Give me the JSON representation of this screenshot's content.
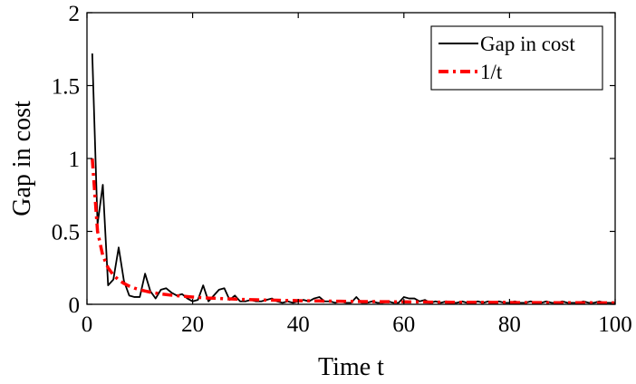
{
  "chart_data": {
    "type": "line",
    "xlabel": "Time t",
    "ylabel": "Gap in cost",
    "xlim": [
      0,
      100
    ],
    "ylim": [
      0,
      2
    ],
    "xticks": [
      0,
      20,
      40,
      60,
      80,
      100
    ],
    "yticks": [
      0,
      0.5,
      1,
      1.5,
      2
    ],
    "xtick_labels": [
      "0",
      "20",
      "40",
      "60",
      "80",
      "100"
    ],
    "ytick_labels": [
      "0",
      "0.5",
      "1",
      "1.5",
      "2"
    ],
    "grid": false,
    "legend_position": "top-right",
    "series": [
      {
        "name": "Gap in cost",
        "color": "#000000",
        "style": "solid",
        "x": [
          1,
          2,
          3,
          4,
          5,
          6,
          7,
          8,
          9,
          10,
          11,
          12,
          13,
          14,
          15,
          16,
          17,
          18,
          19,
          20,
          21,
          22,
          23,
          24,
          25,
          26,
          27,
          28,
          29,
          30,
          31,
          32,
          33,
          34,
          35,
          36,
          37,
          38,
          39,
          40,
          41,
          42,
          43,
          44,
          45,
          46,
          47,
          48,
          49,
          50,
          51,
          52,
          53,
          54,
          55,
          56,
          57,
          58,
          59,
          60,
          61,
          62,
          63,
          64,
          65,
          66,
          67,
          68,
          69,
          70,
          71,
          72,
          73,
          74,
          75,
          76,
          77,
          78,
          79,
          80,
          81,
          82,
          83,
          84,
          85,
          86,
          87,
          88,
          89,
          90,
          91,
          92,
          93,
          94,
          95,
          96,
          97,
          98,
          99,
          100
        ],
        "y": [
          1.72,
          0.55,
          0.82,
          0.13,
          0.17,
          0.39,
          0.16,
          0.06,
          0.05,
          0.05,
          0.21,
          0.09,
          0.04,
          0.1,
          0.11,
          0.08,
          0.06,
          0.07,
          0.04,
          0.02,
          0.03,
          0.13,
          0.02,
          0.06,
          0.1,
          0.11,
          0.03,
          0.06,
          0.02,
          0.02,
          0.03,
          0.02,
          0.02,
          0.03,
          0.04,
          0.02,
          0.01,
          0.02,
          0.01,
          0.02,
          0.03,
          0.02,
          0.04,
          0.05,
          0.02,
          0.02,
          0.01,
          0.02,
          0.01,
          0.01,
          0.05,
          0.01,
          0.01,
          0.02,
          0.01,
          0.01,
          0.02,
          0.01,
          0.01,
          0.05,
          0.04,
          0.04,
          0.02,
          0.03,
          0.01,
          0.02,
          0.01,
          0.02,
          0.01,
          0.01,
          0.02,
          0.01,
          0.01,
          0.02,
          0.01,
          0.02,
          0.01,
          0.02,
          0.01,
          0.01,
          0.02,
          0.01,
          0.01,
          0.02,
          0.01,
          0.01,
          0.02,
          0.01,
          0.01,
          0.02,
          0.01,
          0.01,
          0.01,
          0.02,
          0.01,
          0.01,
          0.02,
          0.01,
          0.01,
          0.01
        ]
      },
      {
        "name": "1/t",
        "color": "#ff0000",
        "style": "dash-dot",
        "x": [
          1,
          2,
          3,
          4,
          5,
          6,
          7,
          8,
          9,
          10,
          11,
          12,
          13,
          14,
          15,
          16,
          17,
          18,
          19,
          20,
          21,
          22,
          23,
          24,
          25,
          26,
          27,
          28,
          29,
          30,
          31,
          32,
          33,
          34,
          35,
          36,
          37,
          38,
          39,
          40,
          41,
          42,
          43,
          44,
          45,
          46,
          47,
          48,
          49,
          50,
          51,
          52,
          53,
          54,
          55,
          56,
          57,
          58,
          59,
          60,
          61,
          62,
          63,
          64,
          65,
          66,
          67,
          68,
          69,
          70,
          71,
          72,
          73,
          74,
          75,
          76,
          77,
          78,
          79,
          80,
          81,
          82,
          83,
          84,
          85,
          86,
          87,
          88,
          89,
          90,
          91,
          92,
          93,
          94,
          95,
          96,
          97,
          98,
          99,
          100
        ],
        "y": [
          1.0,
          0.5,
          0.333,
          0.25,
          0.2,
          0.167,
          0.143,
          0.125,
          0.111,
          0.1,
          0.091,
          0.083,
          0.077,
          0.071,
          0.067,
          0.0625,
          0.059,
          0.056,
          0.053,
          0.05,
          0.048,
          0.045,
          0.043,
          0.042,
          0.04,
          0.038,
          0.037,
          0.036,
          0.034,
          0.033,
          0.032,
          0.031,
          0.03,
          0.029,
          0.029,
          0.028,
          0.027,
          0.026,
          0.026,
          0.025,
          0.024,
          0.024,
          0.023,
          0.023,
          0.022,
          0.022,
          0.021,
          0.021,
          0.02,
          0.02,
          0.02,
          0.019,
          0.019,
          0.019,
          0.018,
          0.018,
          0.018,
          0.017,
          0.017,
          0.017,
          0.016,
          0.016,
          0.016,
          0.016,
          0.015,
          0.015,
          0.015,
          0.015,
          0.014,
          0.014,
          0.014,
          0.014,
          0.014,
          0.014,
          0.013,
          0.013,
          0.013,
          0.013,
          0.013,
          0.0125,
          0.012,
          0.012,
          0.012,
          0.012,
          0.012,
          0.012,
          0.011,
          0.011,
          0.011,
          0.011,
          0.011,
          0.011,
          0.011,
          0.011,
          0.011,
          0.01,
          0.01,
          0.01,
          0.01,
          0.01
        ]
      }
    ]
  }
}
